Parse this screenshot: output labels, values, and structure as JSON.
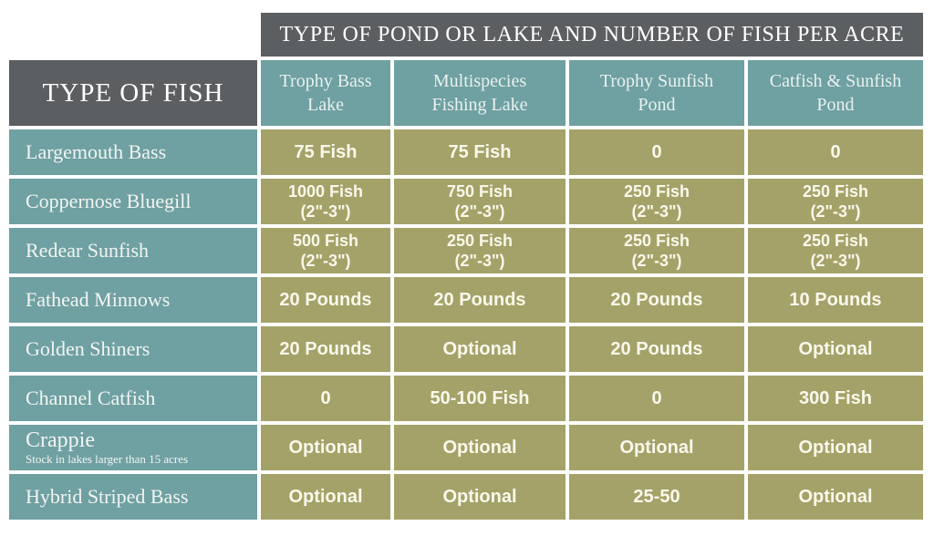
{
  "colors": {
    "gray": "#5b5f61",
    "teal": "#6fa0a2",
    "olive": "#a4a268",
    "title-text": "#ffffff",
    "colhead-text": "#e9f1ee",
    "rowhead-text": "#f3f5f1",
    "value-text": "#faf8ec",
    "page-bg": "#ffffff"
  },
  "table": {
    "title": "TYPE OF POND OR LAKE AND NUMBER OF FISH PER ACRE",
    "corner_header": "TYPE OF FISH",
    "columns": [
      "Trophy Bass\nLake",
      "Multispecies\nFishing Lake",
      "Trophy Sunfish\nPond",
      "Catfish & Sunfish\nPond"
    ],
    "rows": [
      {
        "fish": "Largemouth Bass",
        "values": [
          "75 Fish",
          "75 Fish",
          "0",
          "0"
        ]
      },
      {
        "fish": "Coppernose Bluegill",
        "values": [
          "1000 Fish\n(2\"-3\")",
          "750 Fish\n(2\"-3\")",
          "250 Fish\n(2\"-3\")",
          "250 Fish\n(2\"-3\")"
        ]
      },
      {
        "fish": "Redear Sunfish",
        "values": [
          "500 Fish\n(2\"-3\")",
          "250 Fish\n(2\"-3\")",
          "250 Fish\n(2\"-3\")",
          "250 Fish\n(2\"-3\")"
        ]
      },
      {
        "fish": "Fathead Minnows",
        "values": [
          "20 Pounds",
          "20 Pounds",
          "20 Pounds",
          "10 Pounds"
        ]
      },
      {
        "fish": "Golden Shiners",
        "values": [
          "20 Pounds",
          "Optional",
          "20 Pounds",
          "Optional"
        ]
      },
      {
        "fish": "Channel Catfish",
        "values": [
          "0",
          "50-100 Fish",
          "0",
          "300 Fish"
        ]
      },
      {
        "fish": "Crappie",
        "note": "Stock in lakes larger than 15 acres",
        "values": [
          "Optional",
          "Optional",
          "Optional",
          "Optional"
        ]
      },
      {
        "fish": "Hybrid Striped Bass",
        "values": [
          "Optional",
          "Optional",
          "25-50",
          "Optional"
        ]
      }
    ]
  },
  "chart_data": {
    "type": "table",
    "title": "TYPE OF POND OR LAKE AND NUMBER OF FISH PER ACRE",
    "row_header_label": "TYPE OF FISH",
    "columns": [
      "Trophy Bass Lake",
      "Multispecies Fishing Lake",
      "Trophy Sunfish Pond",
      "Catfish & Sunfish Pond"
    ],
    "rows": [
      {
        "fish": "Largemouth Bass",
        "values": [
          "75 Fish",
          "75 Fish",
          "0",
          "0"
        ]
      },
      {
        "fish": "Coppernose Bluegill",
        "values": [
          "1000 Fish (2\"-3\")",
          "750 Fish (2\"-3\")",
          "250 Fish (2\"-3\")",
          "250 Fish (2\"-3\")"
        ]
      },
      {
        "fish": "Redear Sunfish",
        "values": [
          "500 Fish (2\"-3\")",
          "250 Fish (2\"-3\")",
          "250 Fish (2\"-3\")",
          "250 Fish (2\"-3\")"
        ]
      },
      {
        "fish": "Fathead Minnows",
        "values": [
          "20 Pounds",
          "20 Pounds",
          "20 Pounds",
          "10 Pounds"
        ]
      },
      {
        "fish": "Golden Shiners",
        "values": [
          "20 Pounds",
          "Optional",
          "20 Pounds",
          "Optional"
        ]
      },
      {
        "fish": "Channel Catfish",
        "values": [
          "0",
          "50-100 Fish",
          "0",
          "300 Fish"
        ]
      },
      {
        "fish": "Crappie",
        "note": "Stock in lakes larger than 15 acres",
        "values": [
          "Optional",
          "Optional",
          "Optional",
          "Optional"
        ]
      },
      {
        "fish": "Hybrid Striped Bass",
        "values": [
          "Optional",
          "Optional",
          "25-50",
          "Optional"
        ]
      }
    ]
  }
}
